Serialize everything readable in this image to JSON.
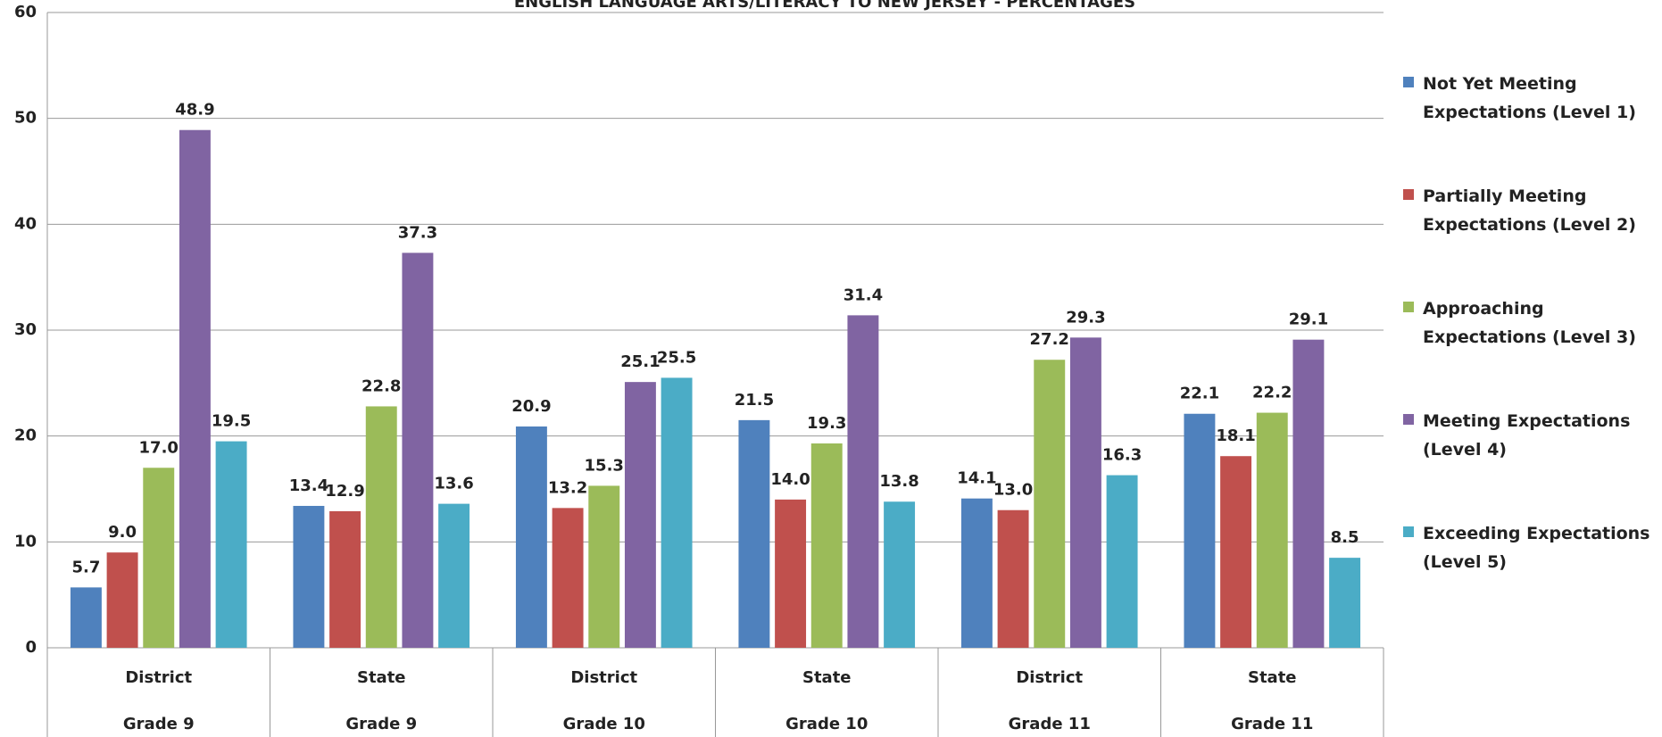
{
  "chart_data": {
    "type": "bar",
    "title": "ENGLISH LANGUAGE ARTS/LITERACY TO NEW JERSEY - PERCENTAGES",
    "categories": [
      "District",
      "State",
      "District",
      "State",
      "District",
      "State"
    ],
    "category_groups": [
      "Grade 9",
      "Grade 9",
      "Grade 10",
      "Grade 10",
      "Grade 11",
      "Grade 11"
    ],
    "series": [
      {
        "name": "Not Yet Meeting\nExpectations  (Level 1)",
        "color": "#4f81bd",
        "values": [
          5.7,
          13.4,
          20.9,
          21.5,
          14.1,
          22.1
        ],
        "value_labels": [
          "5.7",
          "13.4",
          "20.9",
          "21.5",
          "14.1",
          "22.1"
        ]
      },
      {
        "name": "Partially Meeting\nExpectations  (Level 2)",
        "color": "#c0504d",
        "values": [
          9.0,
          12.9,
          13.2,
          14.0,
          13.0,
          18.1
        ],
        "value_labels": [
          "9.0",
          "12.9",
          "13.2",
          "14.0",
          "13.0",
          "18.1"
        ]
      },
      {
        "name": "Approaching\nExpectations (Level 3)",
        "color": "#9bbb59",
        "values": [
          17.0,
          22.8,
          15.3,
          19.3,
          27.2,
          22.2
        ],
        "value_labels": [
          "17.0",
          "22.8",
          "15.3",
          "19.3",
          "27.2",
          "22.2"
        ]
      },
      {
        "name": "Meeting Expectations\n(Level 4)",
        "color": "#8064a2",
        "values": [
          48.9,
          37.3,
          25.1,
          31.4,
          29.3,
          29.1
        ],
        "value_labels": [
          "48.9",
          "37.3",
          "25.1",
          "31.4",
          "29.3",
          "29.1"
        ]
      },
      {
        "name": "Exceeding Expectations\n(Level 5)",
        "color": "#4bacc6",
        "values": [
          19.5,
          13.6,
          25.5,
          13.8,
          16.3,
          8.5
        ],
        "value_labels": [
          "19.5",
          "13.6",
          "25.5",
          "13.8",
          "16.3",
          "8.5"
        ]
      }
    ],
    "ylim": [
      0,
      60
    ],
    "yticks": [
      0,
      10,
      20,
      30,
      40,
      50,
      60
    ],
    "grid": true,
    "legend": "right"
  }
}
